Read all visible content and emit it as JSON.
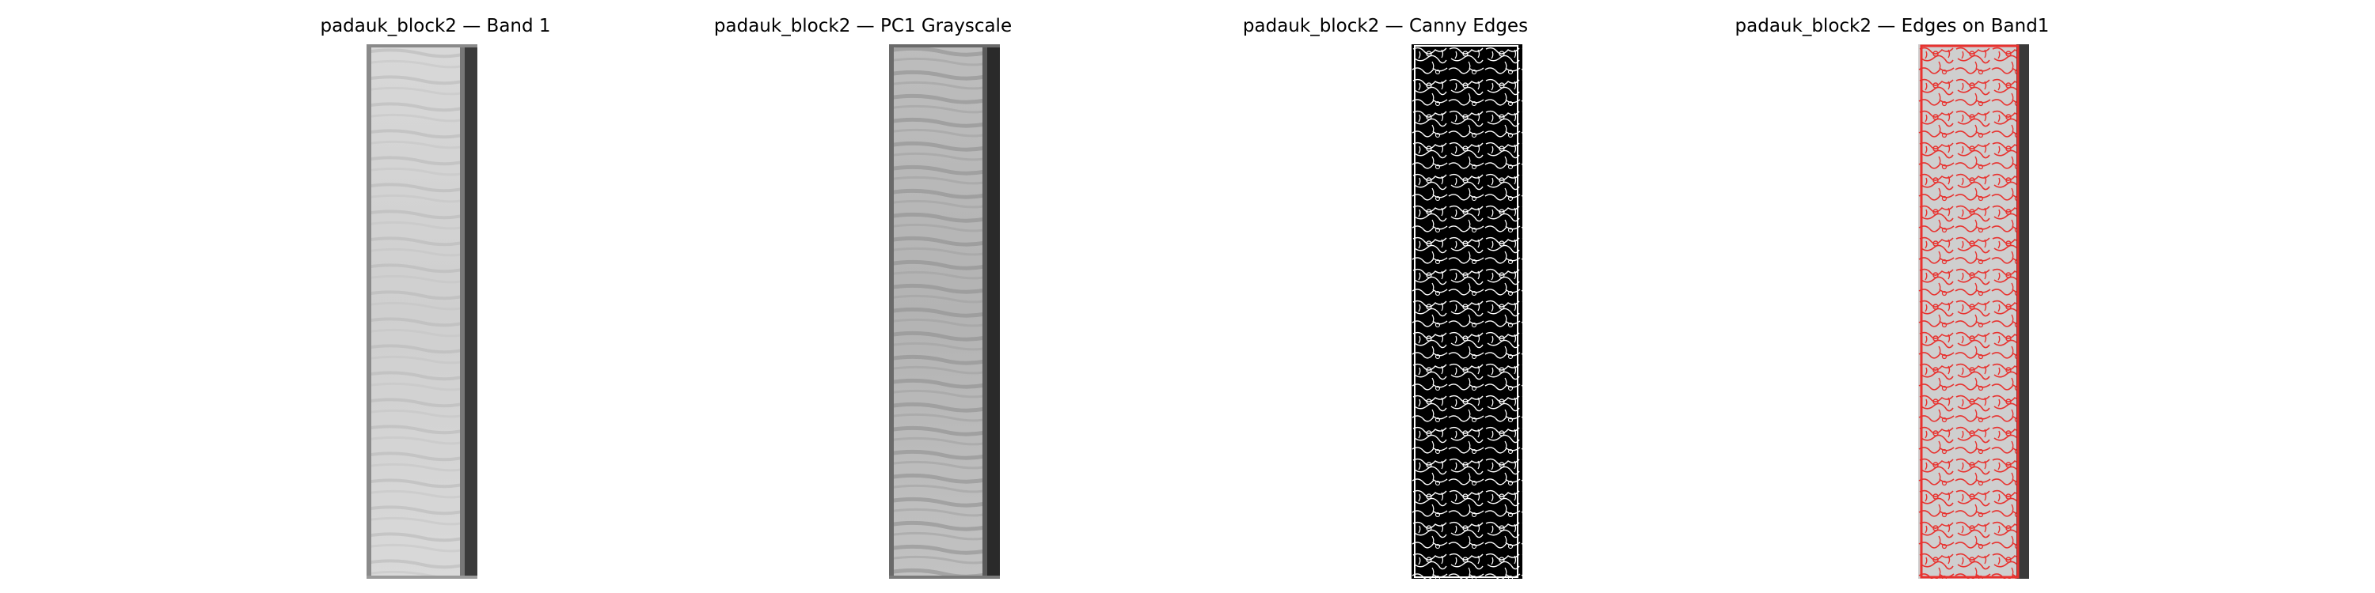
{
  "figure": {
    "panels": [
      {
        "title": "padauk_block2 — Band 1",
        "image": "grayscale-wood-band-image"
      },
      {
        "title": "padauk_block2 — PC1 Grayscale",
        "image": "grayscale-wood-pc1-image"
      },
      {
        "title": "padauk_block2 — Canny Edges",
        "image": "binary-edge-map-image"
      },
      {
        "title": "padauk_block2 — Edges on Band1",
        "image": "edge-overlay-image"
      }
    ]
  },
  "colors": {
    "background": "#ffffff",
    "edge_overlay": "#e8322f",
    "edges": "#ffffff",
    "edge_background": "#000000"
  }
}
